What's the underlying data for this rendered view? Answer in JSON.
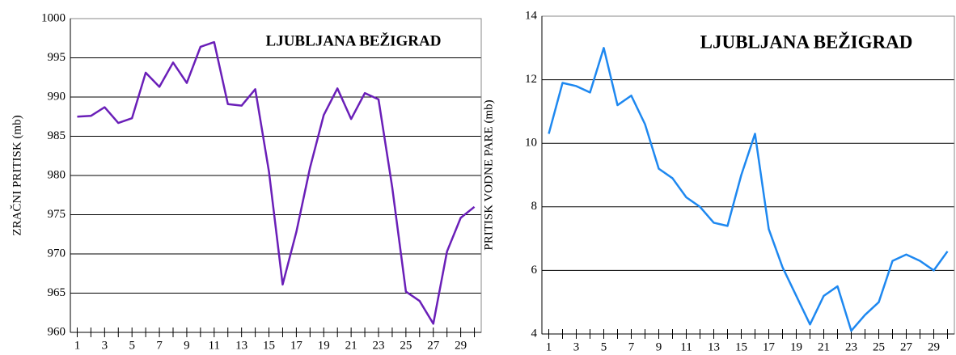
{
  "chart_data": [
    {
      "type": "line",
      "title": "LJUBLJANA  BEŽIGRAD",
      "y_label": "ZRAČNI PRITISK (mb)",
      "categories": [
        "1",
        null,
        "3",
        null,
        "5",
        null,
        "7",
        null,
        "9",
        null,
        "11",
        null,
        "13",
        null,
        "15",
        null,
        "17",
        null,
        "19",
        null,
        "21",
        null,
        "23",
        null,
        "25",
        null,
        "27",
        null,
        "29",
        null
      ],
      "series": [
        {
          "name": "ZRAČNI PRITISK",
          "color": "#6a1fb8",
          "values": [
            987.5,
            987.6,
            988.7,
            986.7,
            987.3,
            993.1,
            991.3,
            994.4,
            991.8,
            996.4,
            997.0,
            989.1,
            988.9,
            991.0,
            980.5,
            966.1,
            972.8,
            981.0,
            987.7,
            991.1,
            987.2,
            990.5,
            989.7,
            978.5,
            965.2,
            964.0,
            961.1,
            970.3,
            974.6,
            976.0
          ]
        }
      ],
      "ylim": [
        960,
        1000
      ],
      "yticks": [
        960,
        965,
        970,
        975,
        980,
        985,
        990,
        995,
        1000
      ],
      "grid": true
    },
    {
      "type": "line",
      "title": "LJUBLJANA   BEŽIGRAD",
      "y_label": "PRITISK VODNE PARE (mb)",
      "categories": [
        "1",
        null,
        "3",
        null,
        "5",
        null,
        "7",
        null,
        "9",
        null,
        "11",
        null,
        "13",
        null,
        "15",
        null,
        "17",
        null,
        "19",
        null,
        "21",
        null,
        "23",
        null,
        "25",
        null,
        "27",
        null,
        "29",
        null
      ],
      "series": [
        {
          "name": "PRITISK VODNE PARE",
          "color": "#1e88f0",
          "values": [
            10.3,
            11.9,
            11.8,
            11.6,
            13.0,
            11.2,
            11.5,
            10.6,
            9.2,
            8.9,
            8.3,
            8.0,
            7.5,
            7.4,
            9.0,
            10.3,
            7.3,
            6.1,
            5.2,
            4.3,
            5.2,
            5.5,
            4.1,
            4.6,
            5.0,
            6.3,
            6.5,
            6.3,
            6.0,
            6.6
          ]
        }
      ],
      "ylim": [
        4,
        14
      ],
      "yticks": [
        4,
        6,
        8,
        10,
        12,
        14
      ],
      "grid": true
    }
  ]
}
